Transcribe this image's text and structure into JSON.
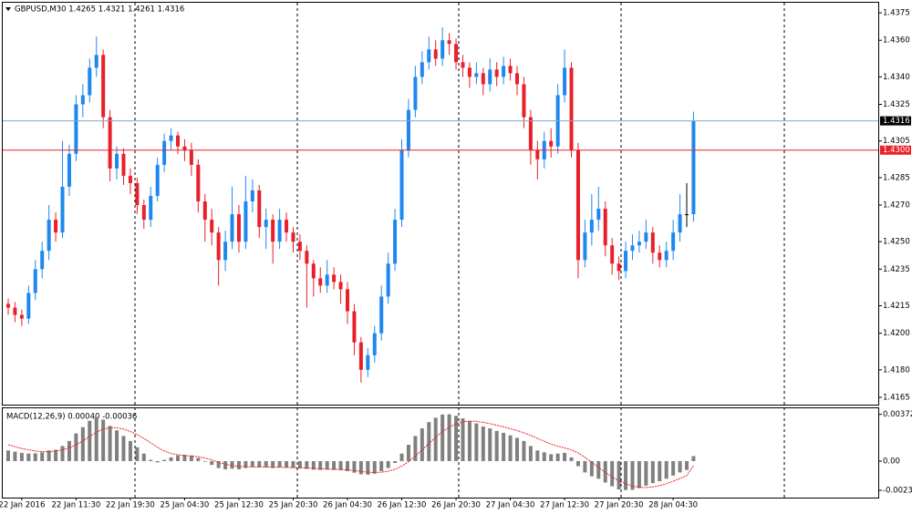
{
  "chart_data": [
    {
      "type": "candlestick",
      "title": "GBPUSD,M30  1.4265 1.4321 1.4261 1.4316",
      "up_color": "#1e88f0",
      "down_color": "#e8202a",
      "doji_color": "#000000",
      "ylim": [
        1.4381,
        1.4161
      ],
      "yticks": [
        {
          "value": 1.4375,
          "label": "1.4375"
        },
        {
          "value": 1.436,
          "label": "1.4360"
        },
        {
          "value": 1.434,
          "label": "1.4340"
        },
        {
          "value": 1.4325,
          "label": "1.4325"
        },
        {
          "value": 1.4305,
          "label": "1.4305"
        },
        {
          "value": 1.4285,
          "label": "1.4285"
        },
        {
          "value": 1.427,
          "label": "1.4270"
        },
        {
          "value": 1.425,
          "label": "1.4250"
        },
        {
          "value": 1.4235,
          "label": "1.4235"
        },
        {
          "value": 1.4215,
          "label": "1.4215"
        },
        {
          "value": 1.42,
          "label": "1.4200"
        },
        {
          "value": 1.418,
          "label": "1.4180"
        },
        {
          "value": 1.4165,
          "label": "1.4165"
        }
      ],
      "bid_line": {
        "value": 1.4316,
        "label": "1.4316",
        "color": "#7fa6cf",
        "label_color": "#000000"
      },
      "alert_line": {
        "value": 1.43,
        "label": "1.4300",
        "color": "#e8202a",
        "label_color": "#e8202a"
      },
      "categories": [
        null,
        null,
        "22 Jan 2016",
        null,
        null,
        null,
        null,
        null,
        null,
        null,
        "22 Jan 11:30",
        null,
        null,
        null,
        null,
        null,
        null,
        null,
        "22 Jan 19:30",
        null,
        null,
        null,
        null,
        null,
        null,
        null,
        "25 Jan 04:30",
        null,
        null,
        null,
        null,
        null,
        null,
        null,
        "25 Jan 12:30",
        null,
        null,
        null,
        null,
        null,
        null,
        null,
        "25 Jan 20:30",
        null,
        null,
        null,
        null,
        null,
        null,
        null,
        "26 Jan 04:30",
        null,
        null,
        null,
        null,
        null,
        null,
        null,
        "26 Jan 12:30",
        null,
        null,
        null,
        null,
        null,
        null,
        null,
        "26 Jan 20:30",
        null,
        null,
        null,
        null,
        null,
        null,
        null,
        "27 Jan 04:30",
        null,
        null,
        null,
        null,
        null,
        null,
        null,
        "27 Jan 12:30",
        null,
        null,
        null,
        null,
        null,
        null,
        null,
        "27 Jan 20:30",
        null,
        null,
        null,
        null,
        null,
        null,
        null,
        "28 Jan 04:30",
        null,
        null,
        null
      ],
      "ohlc": [
        [
          1.4216,
          1.4219,
          1.421,
          1.4214
        ],
        [
          1.4214,
          1.4217,
          1.4206,
          1.421
        ],
        [
          1.421,
          1.4213,
          1.4204,
          1.4208
        ],
        [
          1.4208,
          1.4226,
          1.4205,
          1.4222
        ],
        [
          1.4222,
          1.424,
          1.4218,
          1.4235
        ],
        [
          1.4235,
          1.425,
          1.423,
          1.4245
        ],
        [
          1.4245,
          1.427,
          1.424,
          1.4262
        ],
        [
          1.4262,
          1.4266,
          1.425,
          1.4255
        ],
        [
          1.4255,
          1.4305,
          1.4252,
          1.428
        ],
        [
          1.428,
          1.4303,
          1.4275,
          1.4298
        ],
        [
          1.4298,
          1.433,
          1.4294,
          1.4325
        ],
        [
          1.4325,
          1.4336,
          1.4318,
          1.433
        ],
        [
          1.433,
          1.435,
          1.4326,
          1.4345
        ],
        [
          1.4345,
          1.4362,
          1.434,
          1.4352
        ],
        [
          1.4352,
          1.4355,
          1.4312,
          1.4318
        ],
        [
          1.4318,
          1.4322,
          1.4283,
          1.429
        ],
        [
          1.429,
          1.4302,
          1.4284,
          1.4298
        ],
        [
          1.4298,
          1.4301,
          1.4281,
          1.4286
        ],
        [
          1.4286,
          1.429,
          1.4276,
          1.4282
        ],
        [
          1.4282,
          1.4285,
          1.4265,
          1.427
        ],
        [
          1.427,
          1.4273,
          1.4257,
          1.4262
        ],
        [
          1.4262,
          1.428,
          1.4258,
          1.4275
        ],
        [
          1.4275,
          1.4296,
          1.4272,
          1.4292
        ],
        [
          1.4292,
          1.4309,
          1.4288,
          1.4305
        ],
        [
          1.4305,
          1.4312,
          1.43,
          1.4308
        ],
        [
          1.4308,
          1.431,
          1.4298,
          1.4302
        ],
        [
          1.4302,
          1.4306,
          1.4294,
          1.43
        ],
        [
          1.43,
          1.4304,
          1.4286,
          1.4292
        ],
        [
          1.4292,
          1.4295,
          1.4266,
          1.4272
        ],
        [
          1.4272,
          1.4276,
          1.425,
          1.4262
        ],
        [
          1.4262,
          1.4268,
          1.4248,
          1.4255
        ],
        [
          1.4255,
          1.4258,
          1.4226,
          1.424
        ],
        [
          1.424,
          1.4256,
          1.4234,
          1.425
        ],
        [
          1.425,
          1.428,
          1.4246,
          1.4265
        ],
        [
          1.4265,
          1.427,
          1.4244,
          1.425
        ],
        [
          1.425,
          1.4286,
          1.4246,
          1.4272
        ],
        [
          1.4272,
          1.4284,
          1.4266,
          1.4278
        ],
        [
          1.4278,
          1.4281,
          1.4252,
          1.4258
        ],
        [
          1.4258,
          1.4268,
          1.4246,
          1.4262
        ],
        [
          1.4262,
          1.4265,
          1.4238,
          1.425
        ],
        [
          1.425,
          1.4268,
          1.4246,
          1.4262
        ],
        [
          1.4262,
          1.4266,
          1.425,
          1.4255
        ],
        [
          1.4255,
          1.4258,
          1.4244,
          1.425
        ],
        [
          1.425,
          1.4254,
          1.424,
          1.4245
        ],
        [
          1.4245,
          1.4248,
          1.4214,
          1.4238
        ],
        [
          1.4238,
          1.424,
          1.422,
          1.423
        ],
        [
          1.423,
          1.4236,
          1.4222,
          1.4226
        ],
        [
          1.4226,
          1.424,
          1.4222,
          1.4232
        ],
        [
          1.4232,
          1.4236,
          1.4224,
          1.4228
        ],
        [
          1.4228,
          1.4232,
          1.4216,
          1.4224
        ],
        [
          1.4224,
          1.4228,
          1.4205,
          1.4212
        ],
        [
          1.4212,
          1.4216,
          1.4188,
          1.4195
        ],
        [
          1.4195,
          1.4198,
          1.4173,
          1.418
        ],
        [
          1.418,
          1.4192,
          1.4176,
          1.4188
        ],
        [
          1.4188,
          1.4204,
          1.4184,
          1.42
        ],
        [
          1.42,
          1.4226,
          1.4196,
          1.422
        ],
        [
          1.422,
          1.4244,
          1.4216,
          1.4238
        ],
        [
          1.4238,
          1.4268,
          1.4234,
          1.4262
        ],
        [
          1.4262,
          1.4306,
          1.4258,
          1.43
        ],
        [
          1.43,
          1.4328,
          1.4296,
          1.4322
        ],
        [
          1.4322,
          1.4346,
          1.4318,
          1.434
        ],
        [
          1.434,
          1.4354,
          1.4336,
          1.4348
        ],
        [
          1.4348,
          1.4362,
          1.4344,
          1.4355
        ],
        [
          1.4355,
          1.436,
          1.4346,
          1.435
        ],
        [
          1.435,
          1.4367,
          1.4346,
          1.436
        ],
        [
          1.436,
          1.4364,
          1.4352,
          1.4358
        ],
        [
          1.4358,
          1.4361,
          1.4344,
          1.4348
        ],
        [
          1.4348,
          1.4352,
          1.434,
          1.4345
        ],
        [
          1.4345,
          1.4348,
          1.4334,
          1.434
        ],
        [
          1.434,
          1.4348,
          1.4336,
          1.4342
        ],
        [
          1.4342,
          1.4345,
          1.433,
          1.4336
        ],
        [
          1.4336,
          1.435,
          1.4332,
          1.4344
        ],
        [
          1.4344,
          1.4348,
          1.4335,
          1.434
        ],
        [
          1.434,
          1.4351,
          1.4336,
          1.4346
        ],
        [
          1.4346,
          1.435,
          1.4338,
          1.4342
        ],
        [
          1.4342,
          1.4346,
          1.433,
          1.4336
        ],
        [
          1.4336,
          1.434,
          1.4312,
          1.4318
        ],
        [
          1.4318,
          1.4322,
          1.4292,
          1.43
        ],
        [
          1.43,
          1.4305,
          1.4284,
          1.4295
        ],
        [
          1.4295,
          1.431,
          1.429,
          1.4305
        ],
        [
          1.4305,
          1.4312,
          1.4296,
          1.4302
        ],
        [
          1.4302,
          1.4336,
          1.4298,
          1.433
        ],
        [
          1.433,
          1.4355,
          1.4326,
          1.4345
        ],
        [
          1.4345,
          1.4348,
          1.4296,
          1.43
        ],
        [
          1.43,
          1.4304,
          1.423,
          1.424
        ],
        [
          1.424,
          1.4262,
          1.4236,
          1.4255
        ],
        [
          1.4255,
          1.4276,
          1.4248,
          1.4262
        ],
        [
          1.4262,
          1.428,
          1.4256,
          1.4268
        ],
        [
          1.4268,
          1.4272,
          1.4242,
          1.4248
        ],
        [
          1.4248,
          1.4252,
          1.4232,
          1.4238
        ],
        [
          1.4238,
          1.4242,
          1.4229,
          1.4234
        ],
        [
          1.4234,
          1.425,
          1.423,
          1.4245
        ],
        [
          1.4245,
          1.4254,
          1.424,
          1.4248
        ],
        [
          1.4248,
          1.4256,
          1.4244,
          1.425
        ],
        [
          1.425,
          1.4262,
          1.4246,
          1.4255
        ],
        [
          1.4255,
          1.4258,
          1.4238,
          1.4244
        ],
        [
          1.4244,
          1.4248,
          1.4236,
          1.424
        ],
        [
          1.424,
          1.425,
          1.4236,
          1.4245
        ],
        [
          1.4245,
          1.4262,
          1.424,
          1.4255
        ],
        [
          1.4255,
          1.4276,
          1.425,
          1.4265
        ],
        [
          1.4265,
          1.4282,
          1.4258,
          1.4265
        ],
        [
          1.4265,
          1.4321,
          1.4261,
          1.4316
        ]
      ]
    },
    {
      "type": "macd",
      "title": "MACD(12,26,9) 0.00040 -0.00036",
      "ylim": [
        -0.0029,
        0.0042
      ],
      "yticks": [
        0.00372,
        {
          "value": 0,
          "label": "0.00"
        },
        -0.00232
      ],
      "histogram": {
        "color": "#808080",
        "values": [
          0.00085,
          0.00075,
          0.00065,
          0.0006,
          0.00062,
          0.0007,
          0.00085,
          0.0009,
          0.0012,
          0.0016,
          0.0022,
          0.0027,
          0.0032,
          0.0035,
          0.0033,
          0.0028,
          0.00245,
          0.002,
          0.0016,
          0.0011,
          0.0006,
          0.0001,
          -0.0001,
          0.0001,
          0.0003,
          0.00045,
          0.0005,
          0.00045,
          0.00025,
          -5e-05,
          -0.0003,
          -0.00055,
          -0.00065,
          -0.0006,
          -0.00065,
          -0.00055,
          -0.00045,
          -0.0005,
          -0.00048,
          -0.00055,
          -0.0005,
          -0.00052,
          -0.00055,
          -0.00058,
          -0.00062,
          -0.00068,
          -0.0007,
          -0.00068,
          -0.0007,
          -0.00072,
          -0.0008,
          -0.00092,
          -0.00105,
          -0.00108,
          -0.001,
          -0.0008,
          -0.00055,
          -0.00015,
          0.0006,
          0.0013,
          0.002,
          0.0026,
          0.0031,
          0.00345,
          0.0037,
          0.00372,
          0.0036,
          0.0034,
          0.0032,
          0.003,
          0.00275,
          0.0026,
          0.0024,
          0.00225,
          0.00205,
          0.00185,
          0.0016,
          0.0012,
          0.00085,
          0.0007,
          0.00055,
          0.0006,
          0.00065,
          0.0003,
          -0.0004,
          -0.0009,
          -0.0012,
          -0.0014,
          -0.0017,
          -0.002,
          -0.00225,
          -0.0023,
          -0.00228,
          -0.00215,
          -0.00195,
          -0.00175,
          -0.0016,
          -0.0014,
          -0.00115,
          -0.0009,
          -0.0007,
          0.0004
        ]
      },
      "signal": {
        "color": "#e8202a",
        "values": [
          0.0013,
          0.00115,
          0.001,
          0.0009,
          0.0008,
          0.00075,
          0.00075,
          0.0008,
          0.0009,
          0.00105,
          0.0013,
          0.0016,
          0.00195,
          0.0023,
          0.00255,
          0.00265,
          0.00265,
          0.00255,
          0.00235,
          0.0021,
          0.0018,
          0.00145,
          0.0011,
          0.0008,
          0.0006,
          0.0005,
          0.00045,
          0.0004,
          0.00035,
          0.00025,
          0.0001,
          -0.0001,
          -0.00025,
          -0.00035,
          -0.00042,
          -0.00045,
          -0.00046,
          -0.00046,
          -0.00047,
          -0.00048,
          -0.00049,
          -0.0005,
          -0.00051,
          -0.00053,
          -0.00055,
          -0.00058,
          -0.00061,
          -0.00063,
          -0.00065,
          -0.00067,
          -0.0007,
          -0.00075,
          -0.00082,
          -0.00088,
          -0.00091,
          -0.00088,
          -0.0008,
          -0.00065,
          -0.0004,
          -5e-05,
          0.0004,
          0.0009,
          0.0014,
          0.0019,
          0.00235,
          0.0027,
          0.00295,
          0.00312,
          0.00318,
          0.00316,
          0.00308,
          0.00298,
          0.00285,
          0.00272,
          0.00258,
          0.00243,
          0.00225,
          0.00204,
          0.0018,
          0.00158,
          0.00135,
          0.00118,
          0.00105,
          0.0009,
          0.00065,
          0.0003,
          -0.0001,
          -0.0005,
          -0.0009,
          -0.00125,
          -0.00155,
          -0.0018,
          -0.00198,
          -0.00208,
          -0.0021,
          -0.00205,
          -0.00195,
          -0.0018,
          -0.0016,
          -0.00138,
          -0.00115,
          -0.00036
        ]
      }
    }
  ]
}
